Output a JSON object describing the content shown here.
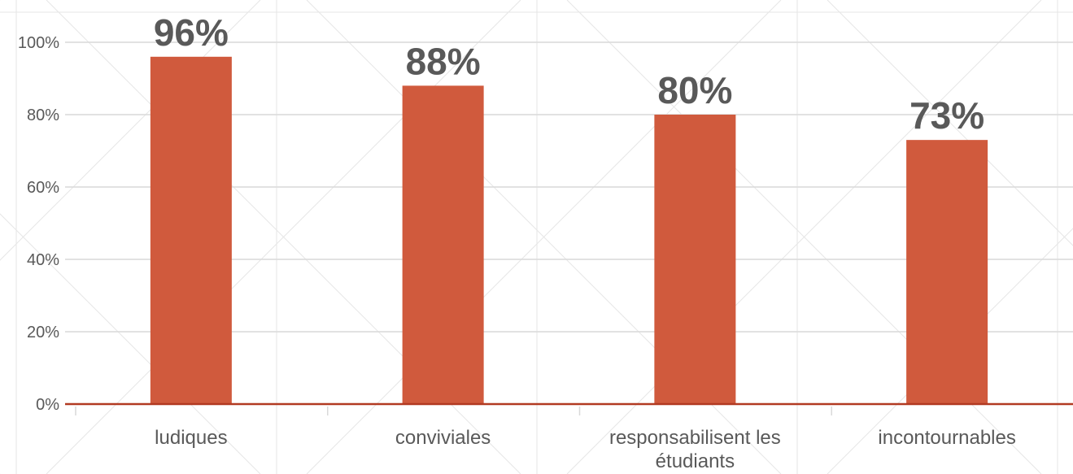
{
  "chart_data": {
    "type": "bar",
    "categories": [
      "ludiques",
      "conviviales",
      "responsabilisent les étudiants",
      "incontournables"
    ],
    "category_lines": [
      [
        "ludiques"
      ],
      [
        "conviviales"
      ],
      [
        "responsabilisent les",
        "étudiants"
      ],
      [
        "incontournables"
      ]
    ],
    "values": [
      96,
      88,
      80,
      73
    ],
    "data_labels": [
      "96%",
      "88%",
      "80%",
      "73%"
    ],
    "y_ticks": [
      0,
      20,
      40,
      60,
      80,
      100
    ],
    "y_tick_labels": [
      "0%",
      "20%",
      "40%",
      "60%",
      "80%",
      "100%"
    ],
    "ylim": [
      0,
      100
    ],
    "grid": true,
    "legend": "none",
    "title": "",
    "xlabel": "",
    "ylabel": "",
    "colors": {
      "bar": "#D05A3D",
      "baseline": "#B23A22",
      "grid": "#D9D9D9",
      "text": "#595959",
      "background_pattern": "#E6E6E6"
    }
  }
}
